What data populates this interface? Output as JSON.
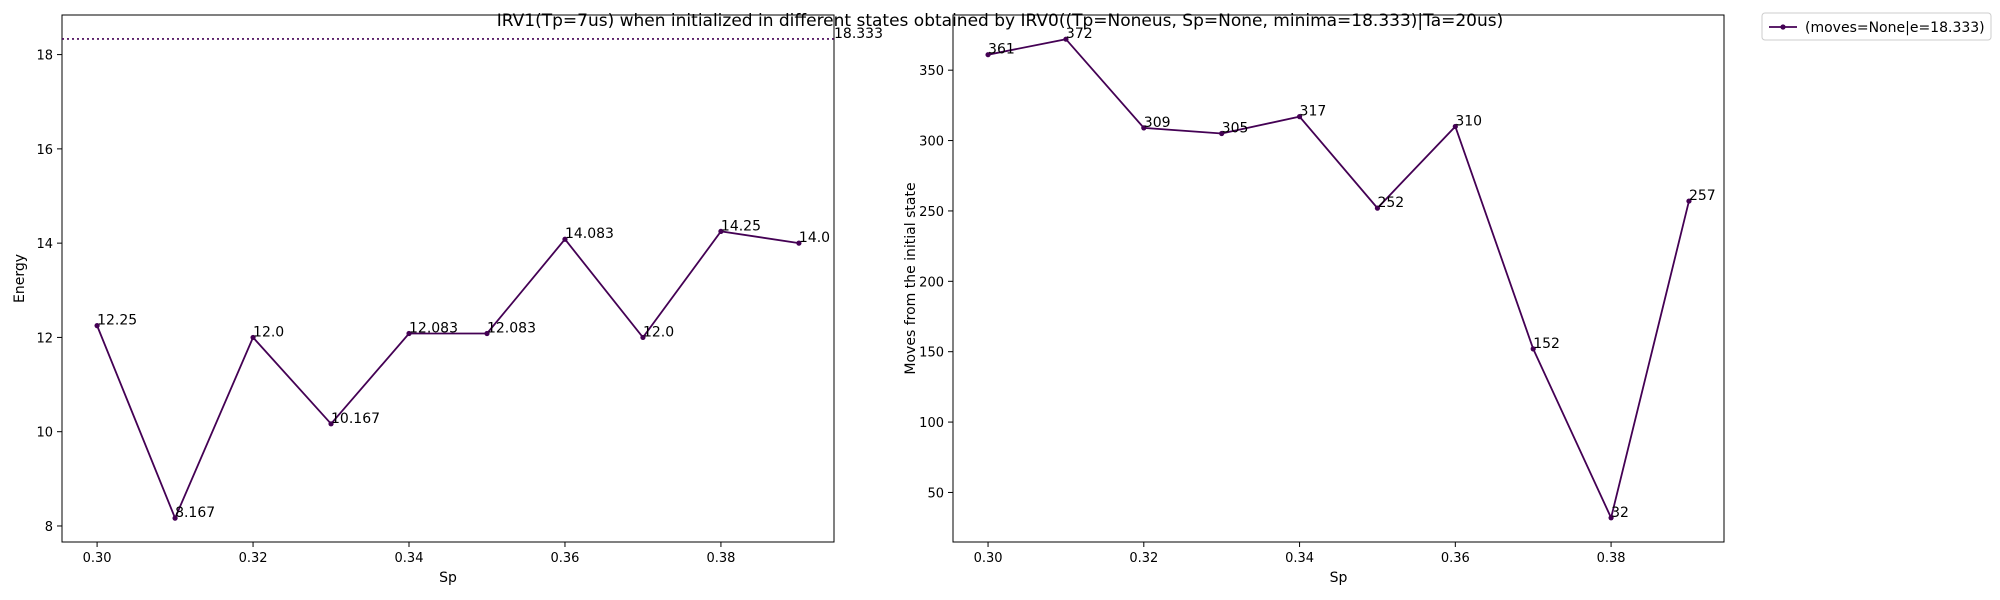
{
  "figure": {
    "title": "IRV1(Tp=7us) when initialized in different states obtained by IRV0((Tp=Noneus, Sp=None, minima=18.333)|Ta=20us)",
    "line_color": "#440154"
  },
  "chart_data": [
    {
      "type": "line",
      "xlabel": "Sp",
      "ylabel": "Energy",
      "x": [
        0.3,
        0.31,
        0.32,
        0.33,
        0.34,
        0.35,
        0.36,
        0.37,
        0.38,
        0.39
      ],
      "series": [
        {
          "values": [
            12.25,
            8.167,
            12.0,
            10.167,
            12.083,
            12.083,
            14.083,
            12.0,
            14.25,
            14.0
          ]
        }
      ],
      "point_labels": [
        "12.25",
        "8.167",
        "12.0",
        "10.167",
        "12.083",
        "12.083",
        "14.083",
        "12.0",
        "14.25",
        "14.0"
      ],
      "reference_line": {
        "value": 18.333,
        "label": "18.333",
        "style": "dotted"
      },
      "xticks": [
        "0.30",
        "0.32",
        "0.34",
        "0.36",
        "0.38"
      ],
      "xtick_values": [
        0.3,
        0.32,
        0.34,
        0.36,
        0.38
      ],
      "yticks": [
        "8",
        "10",
        "12",
        "14",
        "16",
        "18"
      ],
      "ytick_values": [
        8,
        10,
        12,
        14,
        16,
        18
      ],
      "xlim": [
        0.2955,
        0.3945
      ],
      "ylim": [
        7.66,
        18.84
      ],
      "grid": false
    },
    {
      "type": "line",
      "xlabel": "Sp",
      "ylabel": "Moves from the initial state",
      "x": [
        0.3,
        0.31,
        0.32,
        0.33,
        0.34,
        0.35,
        0.36,
        0.37,
        0.38,
        0.39
      ],
      "series": [
        {
          "name": "(moves=None|e=18.333)",
          "values": [
            361,
            372,
            309,
            305,
            317,
            252,
            310,
            152,
            32,
            257
          ]
        }
      ],
      "point_labels": [
        "361",
        "372",
        "309",
        "305",
        "317",
        "252",
        "310",
        "152",
        "32",
        "257"
      ],
      "xticks": [
        "0.30",
        "0.32",
        "0.34",
        "0.36",
        "0.38"
      ],
      "xtick_values": [
        0.3,
        0.32,
        0.34,
        0.36,
        0.38
      ],
      "yticks": [
        "50",
        "100",
        "150",
        "200",
        "250",
        "300",
        "350"
      ],
      "ytick_values": [
        50,
        100,
        150,
        200,
        250,
        300,
        350
      ],
      "xlim": [
        0.2955,
        0.3945
      ],
      "ylim": [
        14.8,
        389.2
      ],
      "grid": false,
      "legend": {
        "placement": "outside-upper-right",
        "entries": [
          "(moves=None|e=18.333)"
        ]
      }
    }
  ]
}
